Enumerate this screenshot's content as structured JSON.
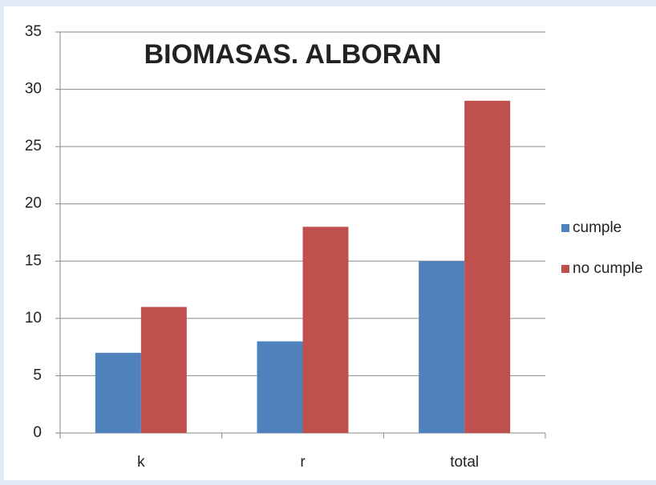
{
  "chart_data": {
    "type": "bar",
    "title": "BIOMASAS. ALBORAN",
    "categories": [
      "k",
      "r",
      "total"
    ],
    "series": [
      {
        "name": "cumple",
        "color": "#4f81bd",
        "values": [
          7,
          8,
          15
        ]
      },
      {
        "name": "no cumple",
        "color": "#c0504d",
        "values": [
          11,
          18,
          29
        ]
      }
    ],
    "ylim": [
      0,
      35
    ],
    "yticks": [
      0,
      5,
      10,
      15,
      20,
      25,
      30,
      35
    ],
    "grid": true,
    "legend": "right"
  }
}
